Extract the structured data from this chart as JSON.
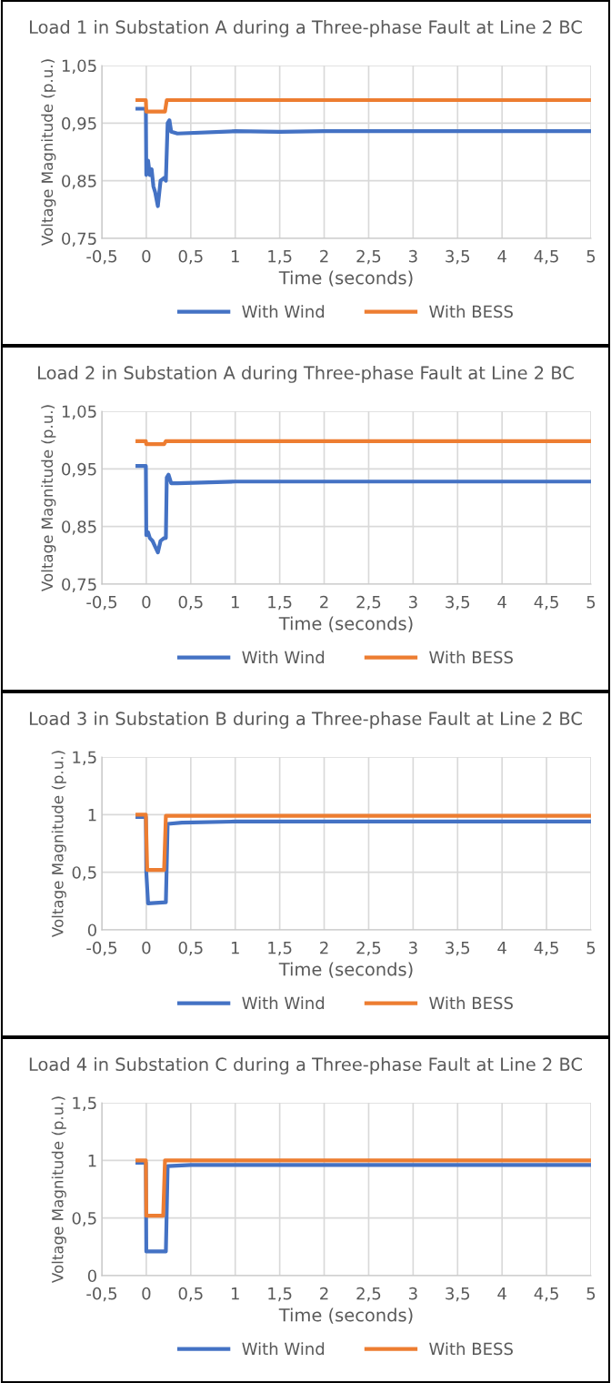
{
  "chart_data": [
    {
      "type": "line",
      "title": "Load 1 in Substation A during a Three-phase Fault at Line 2 BC",
      "xlabel": "Time (seconds)",
      "ylabel": "Voltage Magnitude (p.u.)",
      "xlim": [
        -0.5,
        5
      ],
      "ylim": [
        0.75,
        1.05
      ],
      "xticks": [
        {
          "value": -0.5,
          "label": "-0,5"
        },
        0,
        {
          "value": 0.5,
          "label": "0,5"
        },
        1,
        {
          "value": 1.5,
          "label": "1,5"
        },
        2,
        {
          "value": 2.5,
          "label": "2,5"
        },
        3,
        {
          "value": 3.5,
          "label": "3,5"
        },
        4,
        {
          "value": 4.5,
          "label": "4,5"
        },
        5
      ],
      "yticks": [
        {
          "value": 0.75,
          "label": "0,75"
        },
        {
          "value": 0.85,
          "label": "0,85"
        },
        {
          "value": 0.95,
          "label": "0,95"
        },
        {
          "value": 1.05,
          "label": "1,05"
        }
      ],
      "grid": true,
      "legend": "bottom",
      "marker": "none",
      "line_style": "solid",
      "series": [
        {
          "name": "With Wind",
          "color": "#4472c4",
          "x": [
            -0.1,
            -0.005,
            0.0,
            0.02,
            0.04,
            0.06,
            0.08,
            0.1,
            0.13,
            0.16,
            0.2,
            0.22,
            0.24,
            0.26,
            0.28,
            0.35,
            1,
            1.5,
            2,
            3,
            4,
            5
          ],
          "values": [
            0.975,
            0.975,
            0.86,
            0.885,
            0.86,
            0.87,
            0.84,
            0.83,
            0.806,
            0.85,
            0.855,
            0.85,
            0.95,
            0.955,
            0.935,
            0.932,
            0.936,
            0.935,
            0.936,
            0.936,
            0.936,
            0.936
          ]
        },
        {
          "name": "With BESS",
          "color": "#ed7d31",
          "x": [
            -0.1,
            -0.005,
            0.0,
            0.21,
            0.23,
            5
          ],
          "values": [
            0.99,
            0.99,
            0.97,
            0.97,
            0.99,
            0.99
          ]
        }
      ]
    },
    {
      "type": "line",
      "title": "Load 2 in Substation A during Three-phase Fault at Line 2 BC",
      "xlabel": "Time (seconds)",
      "ylabel": "Voltage Magnitude (p.u.)",
      "xlim": [
        -0.5,
        5
      ],
      "ylim": [
        0.75,
        1.05
      ],
      "xticks": [
        {
          "value": -0.5,
          "label": "-0,5"
        },
        0,
        {
          "value": 0.5,
          "label": "0,5"
        },
        1,
        {
          "value": 1.5,
          "label": "1,5"
        },
        2,
        {
          "value": 2.5,
          "label": "2,5"
        },
        3,
        {
          "value": 3.5,
          "label": "3,5"
        },
        4,
        {
          "value": 4.5,
          "label": "4,5"
        },
        5
      ],
      "yticks": [
        {
          "value": 0.75,
          "label": "0,75"
        },
        {
          "value": 0.85,
          "label": "0,85"
        },
        {
          "value": 0.95,
          "label": "0,95"
        },
        {
          "value": 1.05,
          "label": "1,05"
        }
      ],
      "grid": true,
      "legend": "bottom",
      "marker": "none",
      "line_style": "solid",
      "series": [
        {
          "name": "With Wind",
          "color": "#4472c4",
          "x": [
            -0.1,
            -0.005,
            0.0,
            0.02,
            0.04,
            0.07,
            0.1,
            0.13,
            0.16,
            0.2,
            0.22,
            0.23,
            0.25,
            0.28,
            0.35,
            1,
            2,
            3,
            4,
            5
          ],
          "values": [
            0.955,
            0.955,
            0.835,
            0.84,
            0.83,
            0.825,
            0.815,
            0.805,
            0.825,
            0.83,
            0.83,
            0.935,
            0.94,
            0.925,
            0.925,
            0.928,
            0.928,
            0.928,
            0.928,
            0.928
          ]
        },
        {
          "name": "With BESS",
          "color": "#ed7d31",
          "x": [
            -0.1,
            -0.005,
            0.0,
            0.2,
            0.22,
            5
          ],
          "values": [
            0.998,
            0.998,
            0.993,
            0.993,
            0.998,
            0.998
          ]
        }
      ]
    },
    {
      "type": "line",
      "title": "Load 3 in Substation B during a Three-phase Fault at Line 2 BC",
      "xlabel": "Time (seconds)",
      "ylabel": "Voltage Magnitude (p.u.)",
      "xlim": [
        -0.5,
        5
      ],
      "ylim": [
        0,
        1.5
      ],
      "xticks": [
        {
          "value": -0.5,
          "label": "-0,5"
        },
        0,
        {
          "value": 0.5,
          "label": "0,5"
        },
        1,
        {
          "value": 1.5,
          "label": "1,5"
        },
        2,
        {
          "value": 2.5,
          "label": "2,5"
        },
        3,
        {
          "value": 3.5,
          "label": "3,5"
        },
        4,
        {
          "value": 4.5,
          "label": "4,5"
        },
        5
      ],
      "yticks": [
        0,
        {
          "value": 0.5,
          "label": "0,5"
        },
        1,
        {
          "value": 1.5,
          "label": "1,5"
        }
      ],
      "grid": true,
      "legend": "bottom",
      "marker": "none",
      "line_style": "solid",
      "series": [
        {
          "name": "With Wind",
          "color": "#4472c4",
          "x": [
            -0.1,
            -0.005,
            0.0,
            0.02,
            0.22,
            0.24,
            0.4,
            1,
            2,
            3,
            4,
            5
          ],
          "values": [
            0.98,
            0.98,
            0.5,
            0.23,
            0.24,
            0.92,
            0.93,
            0.94,
            0.94,
            0.94,
            0.94,
            0.94
          ]
        },
        {
          "name": "With BESS",
          "color": "#ed7d31",
          "x": [
            -0.1,
            -0.005,
            0.01,
            0.2,
            0.22,
            5
          ],
          "values": [
            1.0,
            1.0,
            0.52,
            0.52,
            0.99,
            0.99
          ]
        }
      ]
    },
    {
      "type": "line",
      "title": "Load 4 in Substation C during a Three-phase Fault at Line 2 BC",
      "xlabel": "Time (seconds)",
      "ylabel": "Voltage Magnitude (p.u.)",
      "xlim": [
        -0.5,
        5
      ],
      "ylim": [
        0,
        1.5
      ],
      "xticks": [
        {
          "value": -0.5,
          "label": "-0,5"
        },
        0,
        {
          "value": 0.5,
          "label": "0,5"
        },
        1,
        {
          "value": 1.5,
          "label": "1,5"
        },
        2,
        {
          "value": 2.5,
          "label": "2,5"
        },
        3,
        {
          "value": 3.5,
          "label": "3,5"
        },
        4,
        {
          "value": 4.5,
          "label": "4,5"
        },
        5
      ],
      "yticks": [
        0,
        {
          "value": 0.5,
          "label": "0,5"
        },
        1,
        {
          "value": 1.5,
          "label": "1,5"
        }
      ],
      "grid": true,
      "legend": "bottom",
      "marker": "none",
      "line_style": "solid",
      "series": [
        {
          "name": "With Wind",
          "color": "#4472c4",
          "x": [
            -0.1,
            -0.005,
            0.0,
            0.22,
            0.24,
            0.5,
            1,
            2,
            3,
            4,
            5
          ],
          "values": [
            0.98,
            0.98,
            0.21,
            0.21,
            0.95,
            0.96,
            0.96,
            0.96,
            0.96,
            0.96,
            0.96
          ]
        },
        {
          "name": "With BESS",
          "color": "#ed7d31",
          "x": [
            -0.1,
            -0.005,
            0.0,
            0.19,
            0.21,
            5
          ],
          "values": [
            1.0,
            1.0,
            0.52,
            0.52,
            1.0,
            1.0
          ]
        }
      ]
    }
  ]
}
